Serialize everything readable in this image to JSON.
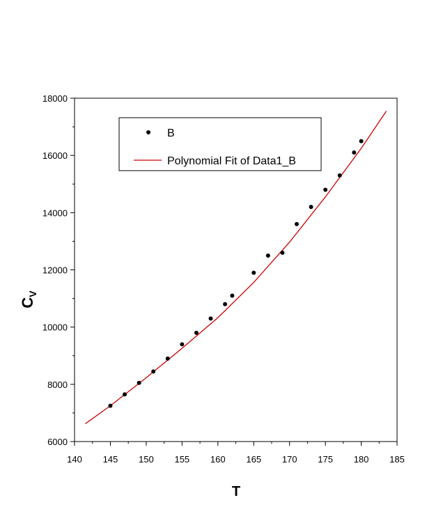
{
  "chart_data": {
    "type": "scatter",
    "title": "",
    "xlabel": "T",
    "ylabel_main": "C",
    "ylabel_sub": "V",
    "xlim": [
      140,
      185
    ],
    "ylim": [
      6000,
      18000
    ],
    "x_ticks": [
      140,
      145,
      150,
      155,
      160,
      165,
      170,
      175,
      180,
      185
    ],
    "y_ticks": [
      6000,
      8000,
      10000,
      12000,
      14000,
      16000,
      18000
    ],
    "x_tick_labels": [
      "140",
      "145",
      "150",
      "155",
      "160",
      "165",
      "170",
      "175",
      "180",
      "185"
    ],
    "y_tick_labels": [
      "6000",
      "8000",
      "10000",
      "12000",
      "14000",
      "16000",
      "18000"
    ],
    "grid": false,
    "legend_position": "top-left",
    "series": [
      {
        "name": "B",
        "kind": "scatter",
        "color": "#000000",
        "x": [
          145,
          147,
          149,
          151,
          153,
          155,
          157,
          159,
          161,
          162,
          165,
          167,
          169,
          171,
          173,
          175,
          177,
          179,
          180
        ],
        "y": [
          7250,
          7650,
          8050,
          8450,
          8900,
          9400,
          9800,
          10300,
          10800,
          11100,
          11900,
          12500,
          12600,
          13600,
          14200,
          14800,
          15300,
          16100,
          16500
        ]
      },
      {
        "name": "Polynomial Fit of Data1_B",
        "kind": "line",
        "color": "#cc0000",
        "x": [
          141.5,
          145,
          150,
          155,
          160,
          165,
          170,
          175,
          180,
          183.5
        ],
        "y": [
          6620,
          7250,
          8230,
          9260,
          10330,
          11560,
          12970,
          14550,
          16250,
          17550
        ]
      }
    ]
  }
}
